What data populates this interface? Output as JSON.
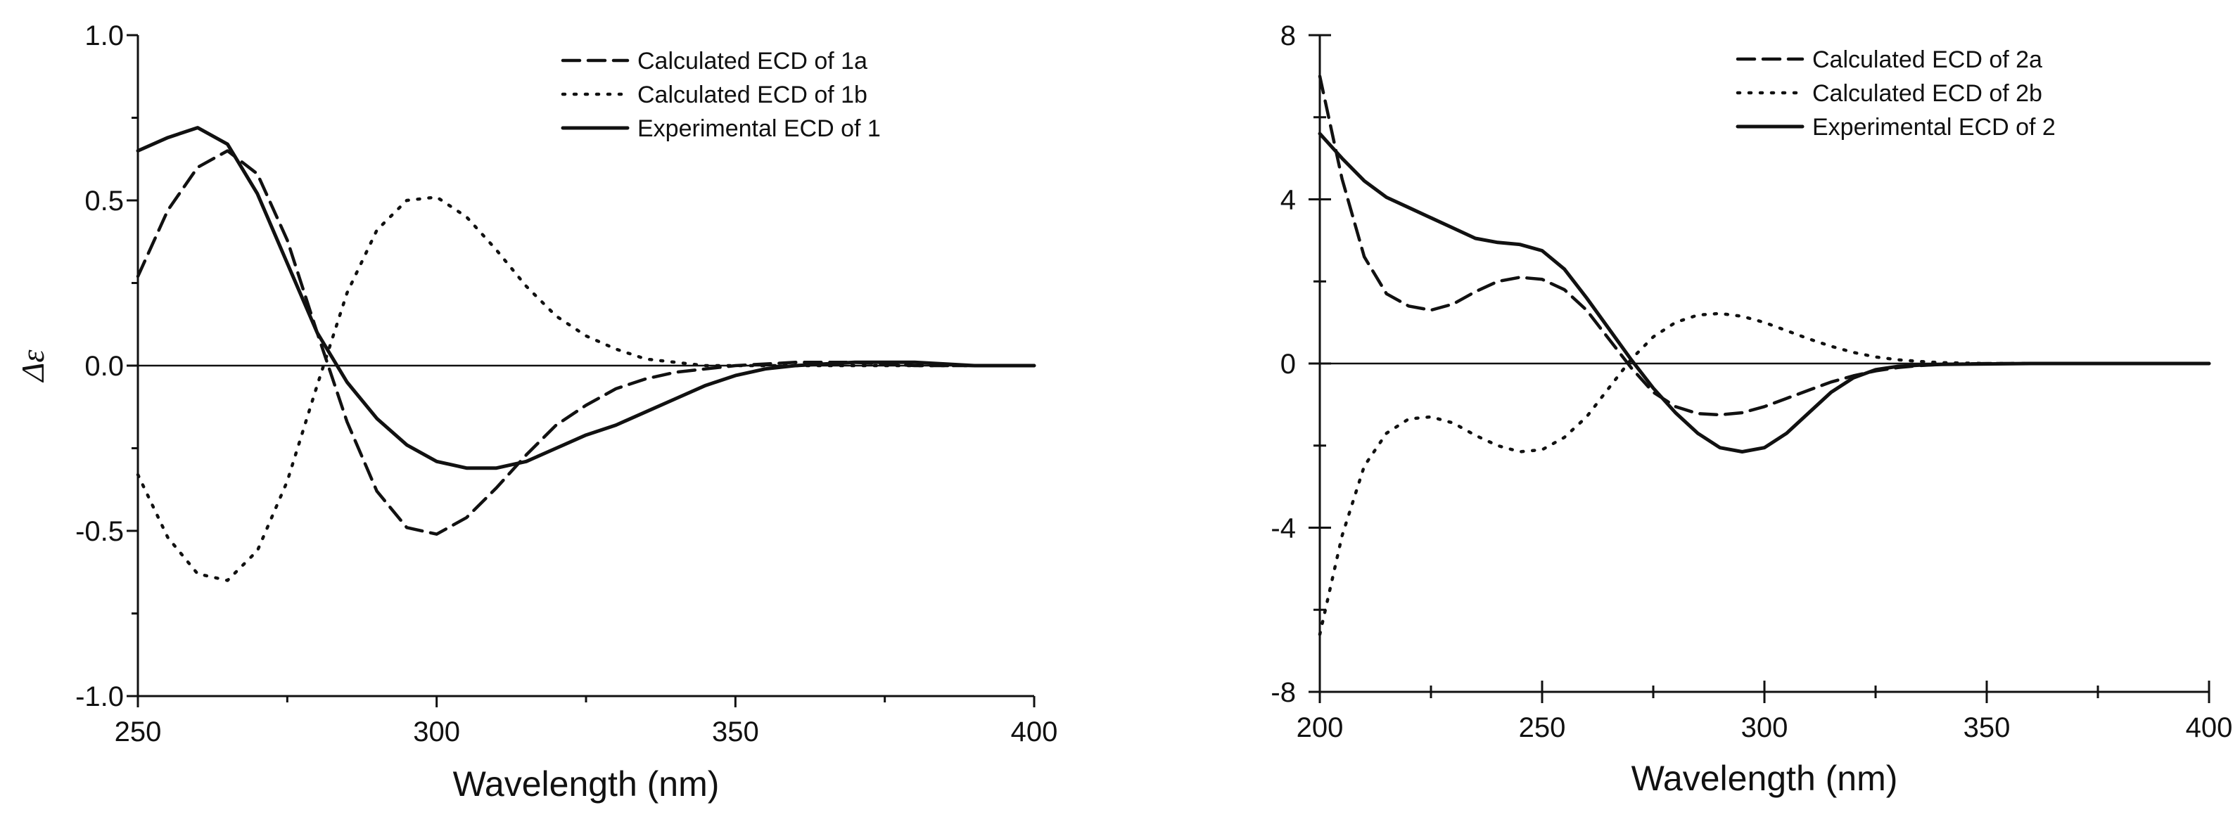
{
  "chart_data": [
    {
      "type": "line",
      "title": "",
      "xlabel": "Wavelength (nm)",
      "ylabel": "Δε",
      "xlim": [
        250,
        400
      ],
      "ylim": [
        -1.0,
        1.0
      ],
      "xticks": [
        250,
        300,
        350,
        400
      ],
      "xtick_labels": [
        "250",
        "300",
        "350",
        "400"
      ],
      "yticks": [
        -1.0,
        -0.5,
        0.0,
        0.5,
        1.0
      ],
      "ytick_labels": [
        "-1.0",
        "-0.5",
        "0.0",
        "0.5",
        "1.0"
      ],
      "grid": false,
      "zero_line": true,
      "legend_position": "top-right",
      "series": [
        {
          "name": "Calculated ECD of 1a",
          "label_prefix": "Calculated ECD of ",
          "compound": "1a",
          "style": "dashed",
          "color": "#111111",
          "x": [
            250,
            255,
            260,
            265,
            270,
            275,
            280,
            285,
            290,
            295,
            300,
            305,
            310,
            315,
            320,
            325,
            330,
            335,
            340,
            345,
            350,
            360,
            370,
            380,
            390,
            400
          ],
          "y": [
            0.27,
            0.47,
            0.6,
            0.65,
            0.58,
            0.38,
            0.1,
            -0.17,
            -0.38,
            -0.49,
            -0.51,
            -0.46,
            -0.37,
            -0.27,
            -0.18,
            -0.12,
            -0.07,
            -0.04,
            -0.02,
            -0.01,
            0.0,
            0.01,
            0.01,
            0.0,
            0.0,
            0.0
          ]
        },
        {
          "name": "Calculated ECD of 1b",
          "label_prefix": "Calculated ECD of ",
          "compound": "1b",
          "style": "dotted",
          "color": "#111111",
          "x": [
            250,
            255,
            260,
            265,
            270,
            275,
            280,
            285,
            290,
            295,
            300,
            305,
            310,
            315,
            320,
            325,
            330,
            335,
            340,
            345,
            350,
            360,
            370,
            380,
            390,
            400
          ],
          "y": [
            -0.33,
            -0.52,
            -0.63,
            -0.65,
            -0.56,
            -0.35,
            -0.06,
            0.22,
            0.41,
            0.5,
            0.51,
            0.45,
            0.35,
            0.24,
            0.15,
            0.09,
            0.05,
            0.02,
            0.01,
            0.0,
            0.0,
            0.0,
            0.0,
            0.0,
            0.0,
            0.0
          ]
        },
        {
          "name": "Experimental ECD of 1",
          "label_prefix": "Experimental ECD of ",
          "compound": "1",
          "style": "solid",
          "color": "#111111",
          "x": [
            250,
            255,
            260,
            265,
            270,
            275,
            280,
            285,
            290,
            295,
            300,
            305,
            310,
            315,
            320,
            325,
            330,
            335,
            340,
            345,
            350,
            355,
            360,
            370,
            380,
            390,
            400
          ],
          "y": [
            0.65,
            0.69,
            0.72,
            0.67,
            0.52,
            0.31,
            0.1,
            -0.05,
            -0.16,
            -0.24,
            -0.29,
            -0.31,
            -0.31,
            -0.29,
            -0.25,
            -0.21,
            -0.18,
            -0.14,
            -0.1,
            -0.06,
            -0.03,
            -0.01,
            0.0,
            0.01,
            0.01,
            0.0,
            0.0
          ]
        }
      ]
    },
    {
      "type": "line",
      "title": "",
      "xlabel": "Wavelength (nm)",
      "ylabel": "",
      "xlim": [
        200,
        400
      ],
      "ylim": [
        -8,
        8
      ],
      "xticks": [
        200,
        250,
        300,
        350,
        400
      ],
      "xtick_labels": [
        "200",
        "250",
        "300",
        "350",
        "400"
      ],
      "yticks": [
        -8,
        -4,
        0,
        4,
        8
      ],
      "ytick_labels": [
        "-8",
        "-4",
        "0",
        "4",
        "8"
      ],
      "grid": false,
      "zero_line": true,
      "legend_position": "top-right",
      "series": [
        {
          "name": "Calculated ECD of 2a",
          "label_prefix": "Calculated ECD of ",
          "compound": "2a",
          "style": "dashed",
          "color": "#111111",
          "x": [
            200,
            205,
            210,
            215,
            220,
            225,
            230,
            235,
            240,
            245,
            250,
            255,
            260,
            265,
            270,
            275,
            280,
            285,
            290,
            295,
            300,
            305,
            310,
            315,
            320,
            325,
            330,
            335,
            340,
            350,
            360,
            370,
            380,
            390,
            400
          ],
          "y": [
            7.0,
            4.5,
            2.6,
            1.7,
            1.4,
            1.3,
            1.45,
            1.75,
            2.0,
            2.1,
            2.05,
            1.8,
            1.3,
            0.6,
            -0.1,
            -0.7,
            -1.05,
            -1.22,
            -1.25,
            -1.2,
            -1.05,
            -0.85,
            -0.65,
            -0.45,
            -0.3,
            -0.18,
            -0.1,
            -0.05,
            -0.02,
            0.0,
            0.0,
            0.0,
            0.0,
            0.0,
            0.0
          ]
        },
        {
          "name": "Calculated ECD of 2b",
          "label_prefix": "Calculated ECD of ",
          "compound": "2b",
          "style": "dotted",
          "color": "#111111",
          "x": [
            200,
            205,
            210,
            215,
            220,
            225,
            230,
            235,
            240,
            245,
            250,
            255,
            260,
            265,
            270,
            275,
            280,
            285,
            290,
            295,
            300,
            305,
            310,
            315,
            320,
            325,
            330,
            335,
            340,
            350,
            360,
            370,
            380,
            390,
            400
          ],
          "y": [
            -6.6,
            -4.2,
            -2.5,
            -1.7,
            -1.35,
            -1.3,
            -1.45,
            -1.75,
            -2.0,
            -2.15,
            -2.1,
            -1.8,
            -1.3,
            -0.6,
            0.1,
            0.65,
            1.0,
            1.18,
            1.22,
            1.15,
            1.0,
            0.8,
            0.6,
            0.42,
            0.27,
            0.16,
            0.09,
            0.05,
            0.02,
            0.0,
            0.0,
            0.0,
            0.0,
            0.0,
            0.0
          ]
        },
        {
          "name": "Experimental ECD of 2",
          "label_prefix": "Experimental ECD of ",
          "compound": "2",
          "style": "solid",
          "color": "#111111",
          "x": [
            200,
            205,
            210,
            215,
            220,
            225,
            230,
            235,
            240,
            245,
            250,
            255,
            260,
            265,
            270,
            275,
            280,
            285,
            290,
            295,
            300,
            305,
            310,
            315,
            320,
            325,
            330,
            335,
            340,
            350,
            360,
            370,
            380,
            390,
            400
          ],
          "y": [
            5.6,
            5.0,
            4.45,
            4.05,
            3.8,
            3.55,
            3.3,
            3.05,
            2.95,
            2.9,
            2.75,
            2.3,
            1.6,
            0.85,
            0.1,
            -0.6,
            -1.2,
            -1.7,
            -2.05,
            -2.15,
            -2.05,
            -1.7,
            -1.2,
            -0.7,
            -0.35,
            -0.15,
            -0.07,
            -0.04,
            -0.02,
            -0.01,
            0.0,
            0.0,
            0.0,
            0.0,
            0.0
          ]
        }
      ]
    }
  ]
}
